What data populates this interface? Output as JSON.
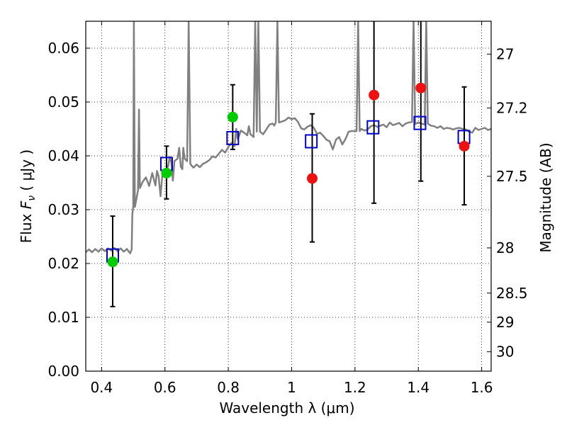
{
  "chart_data": {
    "type": "scatter",
    "xlabel": "Wavelength  λ (μm)",
    "ylabel": "Flux  F_ν  ( μJy )",
    "ylabel_parts": {
      "prefix": "Flux  ",
      "symbol": "F",
      "subscript": "ν",
      "suffix": "  ( μJy )"
    },
    "y2label": "Magnitude (AB)",
    "xlim": [
      0.35,
      1.63
    ],
    "ylim": [
      0.0,
      0.065
    ],
    "grid": true,
    "x_ticks": [
      {
        "value": 0.4,
        "label": "0.4"
      },
      {
        "value": 0.6,
        "label": "0.6"
      },
      {
        "value": 0.8,
        "label": "0.8"
      },
      {
        "value": 1.0,
        "label": "1"
      },
      {
        "value": 1.2,
        "label": "1.2"
      },
      {
        "value": 1.4,
        "label": "1.4"
      },
      {
        "value": 1.6,
        "label": "1.6"
      }
    ],
    "y_ticks": [
      {
        "value": 0.0,
        "label": "0.00"
      },
      {
        "value": 0.01,
        "label": "0.01"
      },
      {
        "value": 0.02,
        "label": "0.02"
      },
      {
        "value": 0.03,
        "label": "0.03"
      },
      {
        "value": 0.04,
        "label": "0.04"
      },
      {
        "value": 0.05,
        "label": "0.05"
      },
      {
        "value": 0.06,
        "label": "0.06"
      }
    ],
    "y2_ticks": [
      {
        "flux": 0.0589,
        "label": "27"
      },
      {
        "flux": 0.0489,
        "label": "27.2"
      },
      {
        "flux": 0.0362,
        "label": "27.5"
      },
      {
        "flux": 0.0229,
        "label": "28"
      },
      {
        "flux": 0.0145,
        "label": "28.5"
      },
      {
        "flux": 0.0091,
        "label": "29"
      },
      {
        "flux": 0.0036,
        "label": "30"
      }
    ],
    "colors": {
      "spectrum": "#808080",
      "model": "#0000cc",
      "green": "#00cc00",
      "red": "#ee1111",
      "errorbar": "#000000",
      "grid": "#000000"
    },
    "spectrum": [
      [
        0.35,
        0.0221
      ],
      [
        0.36,
        0.0226
      ],
      [
        0.37,
        0.0221
      ],
      [
        0.38,
        0.0227
      ],
      [
        0.39,
        0.0222
      ],
      [
        0.4,
        0.0228
      ],
      [
        0.41,
        0.0223
      ],
      [
        0.42,
        0.0228
      ],
      [
        0.43,
        0.0224
      ],
      [
        0.44,
        0.0229
      ],
      [
        0.45,
        0.0223
      ],
      [
        0.46,
        0.0228
      ],
      [
        0.47,
        0.0222
      ],
      [
        0.48,
        0.0227
      ],
      [
        0.49,
        0.0219
      ],
      [
        0.495,
        0.0226
      ],
      [
        0.497,
        0.0292
      ],
      [
        0.5,
        0.0305
      ],
      [
        0.502,
        0.065
      ],
      [
        0.505,
        0.0305
      ],
      [
        0.51,
        0.032
      ],
      [
        0.515,
        0.0336
      ],
      [
        0.518,
        0.0486
      ],
      [
        0.521,
        0.034
      ],
      [
        0.53,
        0.0352
      ],
      [
        0.54,
        0.036
      ],
      [
        0.55,
        0.0344
      ],
      [
        0.56,
        0.0368
      ],
      [
        0.57,
        0.0345
      ],
      [
        0.575,
        0.0372
      ],
      [
        0.58,
        0.0362
      ],
      [
        0.586,
        0.0325
      ],
      [
        0.592,
        0.0365
      ],
      [
        0.6,
        0.0373
      ],
      [
        0.61,
        0.038
      ],
      [
        0.615,
        0.0398
      ],
      [
        0.62,
        0.0388
      ],
      [
        0.625,
        0.0354
      ],
      [
        0.63,
        0.039
      ],
      [
        0.64,
        0.0395
      ],
      [
        0.645,
        0.0415
      ],
      [
        0.65,
        0.038
      ],
      [
        0.655,
        0.0375
      ],
      [
        0.658,
        0.0415
      ],
      [
        0.662,
        0.0395
      ],
      [
        0.67,
        0.039
      ],
      [
        0.675,
        0.065
      ],
      [
        0.68,
        0.0385
      ],
      [
        0.69,
        0.0378
      ],
      [
        0.7,
        0.0384
      ],
      [
        0.71,
        0.0379
      ],
      [
        0.72,
        0.0385
      ],
      [
        0.73,
        0.0388
      ],
      [
        0.74,
        0.0392
      ],
      [
        0.75,
        0.0399
      ],
      [
        0.76,
        0.0397
      ],
      [
        0.77,
        0.0404
      ],
      [
        0.78,
        0.0411
      ],
      [
        0.79,
        0.0406
      ],
      [
        0.8,
        0.0416
      ],
      [
        0.81,
        0.0424
      ],
      [
        0.82,
        0.0418
      ],
      [
        0.825,
        0.045
      ],
      [
        0.83,
        0.0431
      ],
      [
        0.84,
        0.0447
      ],
      [
        0.85,
        0.0443
      ],
      [
        0.86,
        0.0438
      ],
      [
        0.865,
        0.0455
      ],
      [
        0.87,
        0.044
      ],
      [
        0.88,
        0.0435
      ],
      [
        0.885,
        0.065
      ],
      [
        0.89,
        0.0445
      ],
      [
        0.895,
        0.065
      ],
      [
        0.9,
        0.0445
      ],
      [
        0.91,
        0.044
      ],
      [
        0.92,
        0.0449
      ],
      [
        0.93,
        0.0458
      ],
      [
        0.94,
        0.046
      ],
      [
        0.945,
        0.0456
      ],
      [
        0.95,
        0.0462
      ],
      [
        0.955,
        0.065
      ],
      [
        0.96,
        0.0462
      ],
      [
        0.97,
        0.0464
      ],
      [
        0.98,
        0.0466
      ],
      [
        0.99,
        0.0471
      ],
      [
        1.0,
        0.0468
      ],
      [
        1.01,
        0.047
      ],
      [
        1.02,
        0.0463
      ],
      [
        1.03,
        0.0451
      ],
      [
        1.04,
        0.0449
      ],
      [
        1.05,
        0.0454
      ],
      [
        1.06,
        0.0457
      ],
      [
        1.07,
        0.0452
      ],
      [
        1.08,
        0.0441
      ],
      [
        1.09,
        0.0443
      ],
      [
        1.1,
        0.0437
      ],
      [
        1.11,
        0.043
      ],
      [
        1.12,
        0.0427
      ],
      [
        1.13,
        0.0412
      ],
      [
        1.14,
        0.043
      ],
      [
        1.15,
        0.0435
      ],
      [
        1.16,
        0.0421
      ],
      [
        1.17,
        0.0431
      ],
      [
        1.18,
        0.0445
      ],
      [
        1.19,
        0.0446
      ],
      [
        1.2,
        0.0446
      ],
      [
        1.205,
        0.0446
      ],
      [
        1.21,
        0.065
      ],
      [
        1.215,
        0.0446
      ],
      [
        1.22,
        0.045
      ],
      [
        1.23,
        0.0447
      ],
      [
        1.24,
        0.0449
      ],
      [
        1.25,
        0.0455
      ],
      [
        1.26,
        0.0457
      ],
      [
        1.27,
        0.0454
      ],
      [
        1.28,
        0.0456
      ],
      [
        1.29,
        0.0458
      ],
      [
        1.3,
        0.0453
      ],
      [
        1.31,
        0.0462
      ],
      [
        1.32,
        0.0457
      ],
      [
        1.33,
        0.0459
      ],
      [
        1.34,
        0.0461
      ],
      [
        1.35,
        0.0455
      ],
      [
        1.36,
        0.046
      ],
      [
        1.37,
        0.0462
      ],
      [
        1.38,
        0.0463
      ],
      [
        1.385,
        0.065
      ],
      [
        1.39,
        0.0459
      ],
      [
        1.4,
        0.0462
      ],
      [
        1.41,
        0.046
      ],
      [
        1.42,
        0.0458
      ],
      [
        1.425,
        0.065
      ],
      [
        1.43,
        0.046
      ],
      [
        1.44,
        0.0456
      ],
      [
        1.45,
        0.0455
      ],
      [
        1.46,
        0.0452
      ],
      [
        1.47,
        0.0455
      ],
      [
        1.48,
        0.045
      ],
      [
        1.49,
        0.0452
      ],
      [
        1.5,
        0.0451
      ],
      [
        1.51,
        0.0449
      ],
      [
        1.52,
        0.0451
      ],
      [
        1.53,
        0.0452
      ],
      [
        1.54,
        0.045
      ],
      [
        1.55,
        0.0449
      ],
      [
        1.56,
        0.0445
      ],
      [
        1.57,
        0.0443
      ],
      [
        1.58,
        0.0452
      ],
      [
        1.59,
        0.0448
      ],
      [
        1.6,
        0.045
      ],
      [
        1.61,
        0.0452
      ],
      [
        1.62,
        0.0448
      ],
      [
        1.63,
        0.045
      ]
    ],
    "model_squares": [
      {
        "x": 0.435,
        "y": 0.0215
      },
      {
        "x": 0.605,
        "y": 0.0385
      },
      {
        "x": 0.814,
        "y": 0.0433
      },
      {
        "x": 1.062,
        "y": 0.0427
      },
      {
        "x": 1.257,
        "y": 0.0453
      },
      {
        "x": 1.405,
        "y": 0.0461
      },
      {
        "x": 1.544,
        "y": 0.0435
      }
    ],
    "green_points": [
      {
        "x": 0.435,
        "y": 0.0203,
        "err_low": 0.012,
        "err_high": 0.0288
      },
      {
        "x": 0.605,
        "y": 0.0368,
        "err_low": 0.032,
        "err_high": 0.0418
      },
      {
        "x": 0.814,
        "y": 0.0472,
        "err_low": 0.0412,
        "err_high": 0.0532
      }
    ],
    "red_points": [
      {
        "x": 1.065,
        "y": 0.0358,
        "err_low": 0.024,
        "err_high": 0.0478
      },
      {
        "x": 1.26,
        "y": 0.0513,
        "err_low": 0.0312,
        "err_high": 0.065
      },
      {
        "x": 1.408,
        "y": 0.0526,
        "err_low": 0.0353,
        "err_high": 0.065
      },
      {
        "x": 1.545,
        "y": 0.0418,
        "err_low": 0.0309,
        "err_high": 0.0528
      }
    ]
  }
}
